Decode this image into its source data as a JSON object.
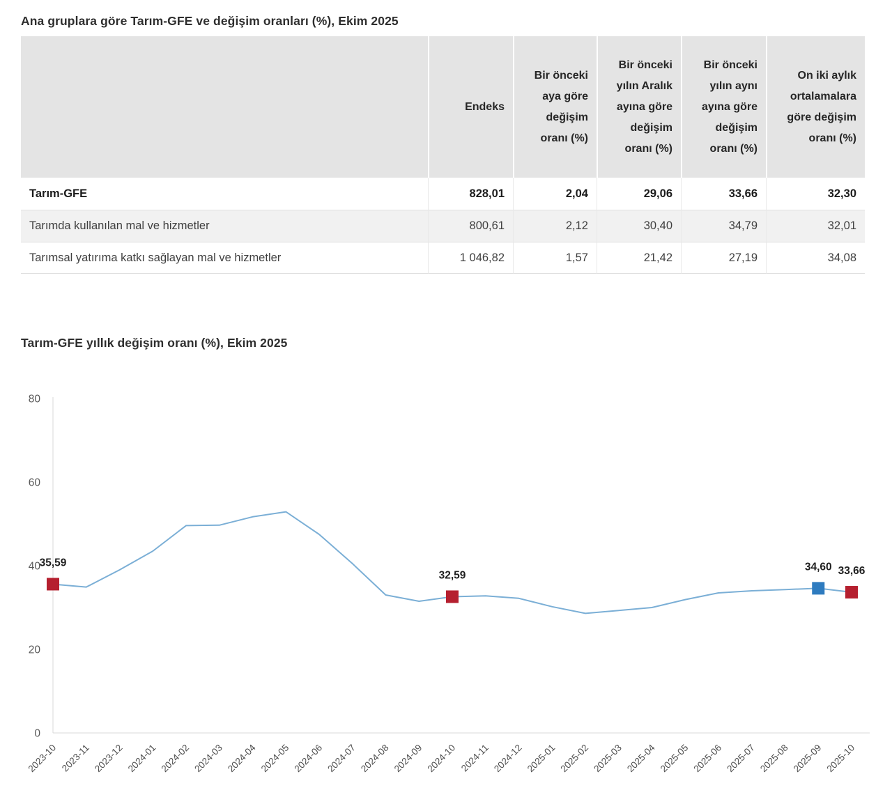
{
  "table_section": {
    "title": "Ana gruplara göre Tarım-GFE ve değişim oranları (%), Ekim 2025",
    "columns": [
      "",
      "Endeks",
      "Bir önceki aya göre değişim oranı (%)",
      "Bir önceki yılın Aralık ayına göre değişim oranı (%)",
      "Bir önceki yılın aynı ayına göre değişim oranı (%)",
      "On iki aylık ortalamalara göre değişim oranı (%)"
    ],
    "rows": [
      {
        "label": "Tarım-GFE",
        "values": [
          "828,01",
          "2,04",
          "29,06",
          "33,66",
          "32,30"
        ]
      },
      {
        "label": "Tarımda kullanılan mal ve hizmetler",
        "values": [
          "800,61",
          "2,12",
          "30,40",
          "34,79",
          "32,01"
        ]
      },
      {
        "label": "Tarımsal yatırıma katkı sağlayan mal ve hizmetler",
        "values": [
          "1 046,82",
          "1,57",
          "21,42",
          "27,19",
          "34,08"
        ]
      }
    ]
  },
  "chart_section": {
    "title": "Tarım-GFE yıllık değişim oranı (%), Ekim 2025"
  },
  "chart_data": {
    "type": "line",
    "title": "Tarım-GFE yıllık değişim oranı (%), Ekim 2025",
    "x": [
      "2023-10",
      "2023-11",
      "2023-12",
      "2024-01",
      "2024-02",
      "2024-03",
      "2024-04",
      "2024-05",
      "2024-06",
      "2024-07",
      "2024-08",
      "2024-09",
      "2024-10",
      "2024-11",
      "2024-12",
      "2025-01",
      "2025-02",
      "2025-03",
      "2025-04",
      "2025-05",
      "2025-06",
      "2025-07",
      "2025-08",
      "2025-09",
      "2025-10"
    ],
    "values": [
      35.59,
      34.9,
      39.0,
      43.5,
      49.6,
      49.7,
      51.7,
      52.9,
      47.5,
      40.5,
      33.0,
      31.5,
      32.59,
      32.8,
      32.2,
      30.2,
      28.6,
      29.3,
      30.0,
      31.9,
      33.5,
      34.0,
      34.3,
      34.6,
      33.66
    ],
    "ylim": [
      0,
      80
    ],
    "yticks": [
      0,
      20,
      40,
      60,
      80
    ],
    "grid": false,
    "legend": "none",
    "line_color": "#7bafd6",
    "axis_color": "#d9d9d9",
    "tick_label_color": "#595959",
    "annotation_color": "#1f1f1f",
    "annotations": [
      {
        "x": "2023-10",
        "value": 35.59,
        "label": "35,59",
        "marker_color": "#b51f2f"
      },
      {
        "x": "2024-10",
        "value": 32.59,
        "label": "32,59",
        "marker_color": "#b51f2f"
      },
      {
        "x": "2025-09",
        "value": 34.6,
        "label": "34,60",
        "marker_color": "#2e7bbf"
      },
      {
        "x": "2025-10",
        "value": 33.66,
        "label": "33,66",
        "marker_color": "#b51f2f"
      }
    ]
  }
}
